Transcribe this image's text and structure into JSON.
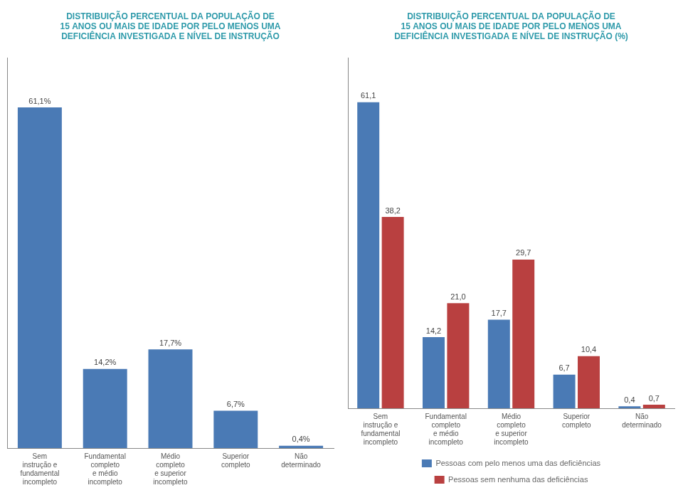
{
  "chart_data": [
    {
      "type": "bar",
      "title": [
        "DISTRIBUIÇÃO PERCENTUAL DA POPULAÇÃO DE",
        "15 ANOS OU MAIS DE IDADE POR PELO MENOS UMA",
        "DEFICIÊNCIA INVESTIGADA E NÍVEL DE INSTRUÇÃO"
      ],
      "categories": [
        "Sem\ninstrução e\nfundamental\nincompleto",
        "Fundamental\ncompleto\ne médio\nincompleto",
        "Médio\ncompleto\ne superior\nincompleto",
        "Superior\ncompleto",
        "Não\ndeterminado"
      ],
      "values": [
        61.1,
        14.2,
        17.7,
        6.7,
        0.4
      ],
      "value_labels": [
        "61,1%",
        "14,2%",
        "17,7%",
        "6,7%",
        "0,4%"
      ],
      "color": "#4a7ab5",
      "ylim": [
        0,
        70
      ],
      "grid": false,
      "data_labels": true,
      "tick_labels": "x"
    },
    {
      "type": "bar",
      "title": [
        "DISTRIBUIÇÃO PERCENTUAL DA POPULAÇÃO DE",
        "15 ANOS OU MAIS DE IDADE POR PELO MENOS UMA",
        "DEFICIÊNCIA INVESTIGADA E NÍVEL DE INSTRUÇÃO (%)"
      ],
      "categories": [
        "Sem\ninstrução e\nfundamental\nincompleto",
        "Fundamental\ncompleto\ne médio\nincompleto",
        "Médio\ncompleto\ne superior\nincompleto",
        "Superior\ncompleto",
        "Não\ndeterminado"
      ],
      "series": [
        {
          "name": "Pessoas com pelo menos uma das deficiências",
          "color": "#4a7ab5",
          "values": [
            61.1,
            14.2,
            17.7,
            6.7,
            0.4
          ],
          "value_labels": [
            "61,1",
            "14,2",
            "17,7",
            "6,7",
            "0,4"
          ]
        },
        {
          "name": "Pessoas sem nenhuma das deficiências",
          "color": "#b94040",
          "values": [
            38.2,
            21.0,
            29.7,
            10.4,
            0.7
          ],
          "value_labels": [
            "38,2",
            "21,0",
            "29,7",
            "10,4",
            "0,7"
          ]
        }
      ],
      "ylim": [
        0,
        70
      ],
      "grid": false,
      "legend": "bottom",
      "data_labels": true,
      "tick_labels": "x"
    }
  ]
}
